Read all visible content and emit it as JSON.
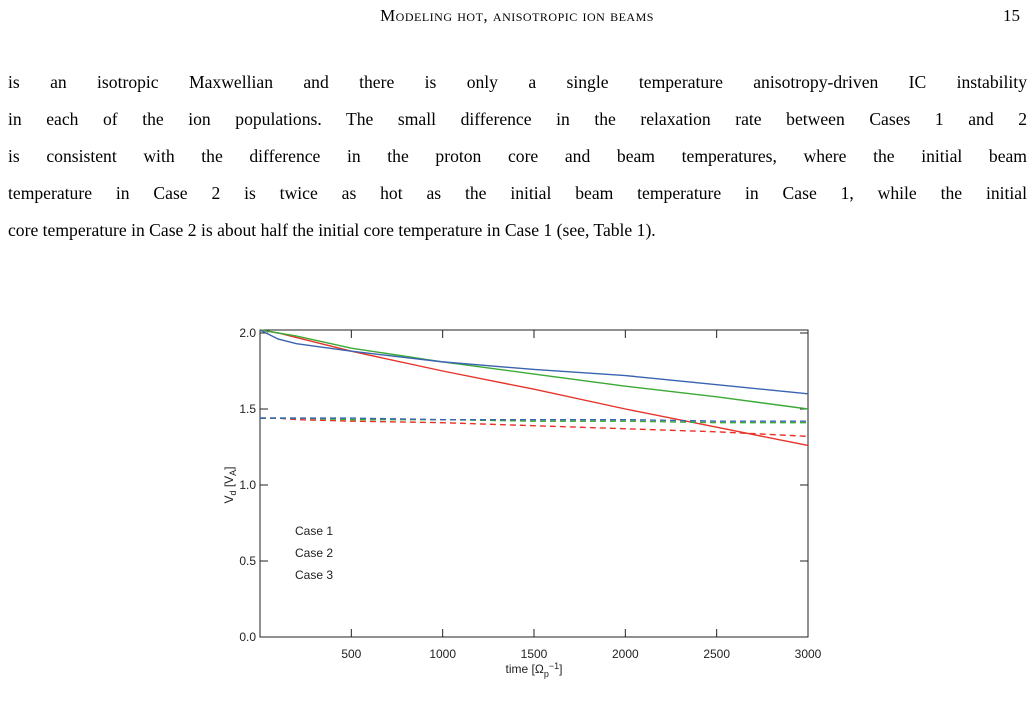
{
  "header": {
    "title": "Modeling hot, anisotropic ion beams",
    "page": "15"
  },
  "paragraph": {
    "lines": [
      "is an isotropic Maxwellian and there is only a single temperature anisotropy-driven IC instability",
      "in each of the ion populations. The small difference in the relaxation rate between Cases 1 and 2",
      "is consistent with the difference in the proton core and beam temperatures, where the initial beam",
      "temperature in Case 2 is twice as hot as the initial beam temperature in Case 1, while the initial",
      "core temperature in Case 2 is about half the initial core temperature in Case 1 (see, Table 1)."
    ]
  },
  "chart_data": {
    "type": "line",
    "xlabel": [
      "time [Ω",
      "p",
      "−1",
      "]"
    ],
    "ylabel": [
      "V",
      "d",
      " [V",
      "A",
      "]"
    ],
    "x": [
      0,
      100,
      200,
      500,
      1000,
      1500,
      2000,
      2500,
      3000
    ],
    "series": [
      {
        "name": "Case 1",
        "color": "#e8332a",
        "values": [
          2.02,
          2.0,
          1.97,
          1.88,
          1.75,
          1.63,
          1.5,
          1.38,
          1.26
        ]
      },
      {
        "name": "Case 2",
        "color": "#3aaa35",
        "values": [
          2.02,
          2.0,
          1.98,
          1.9,
          1.81,
          1.73,
          1.65,
          1.58,
          1.5
        ]
      },
      {
        "name": "Case 3",
        "color": "#3a63b0",
        "values": [
          2.02,
          1.96,
          1.93,
          1.88,
          1.81,
          1.76,
          1.72,
          1.66,
          1.6
        ]
      },
      {
        "color": "#e8332a",
        "dashed": true,
        "values": [
          1.44,
          1.44,
          1.43,
          1.42,
          1.41,
          1.39,
          1.37,
          1.35,
          1.32
        ]
      },
      {
        "color": "#3aaa35",
        "dashed": true,
        "values": [
          1.44,
          1.44,
          1.44,
          1.43,
          1.43,
          1.42,
          1.42,
          1.41,
          1.41
        ]
      },
      {
        "color": "#3a63b0",
        "dashed": true,
        "values": [
          1.44,
          1.44,
          1.44,
          1.44,
          1.43,
          1.43,
          1.43,
          1.42,
          1.42
        ]
      }
    ],
    "xlim": [
      0,
      3000
    ],
    "ylim": [
      0,
      2.0
    ],
    "xticks": [
      500,
      1000,
      1500,
      2000,
      2500,
      3000
    ],
    "yticks": [
      {
        "value": 0,
        "label": "0.0"
      },
      {
        "value": 0.5,
        "label": "0.5"
      },
      {
        "value": 1,
        "label": "1.0"
      },
      {
        "value": 1.5,
        "label": "1.5"
      },
      {
        "value": 2,
        "label": "2.0"
      }
    ],
    "legend": "lower left"
  }
}
